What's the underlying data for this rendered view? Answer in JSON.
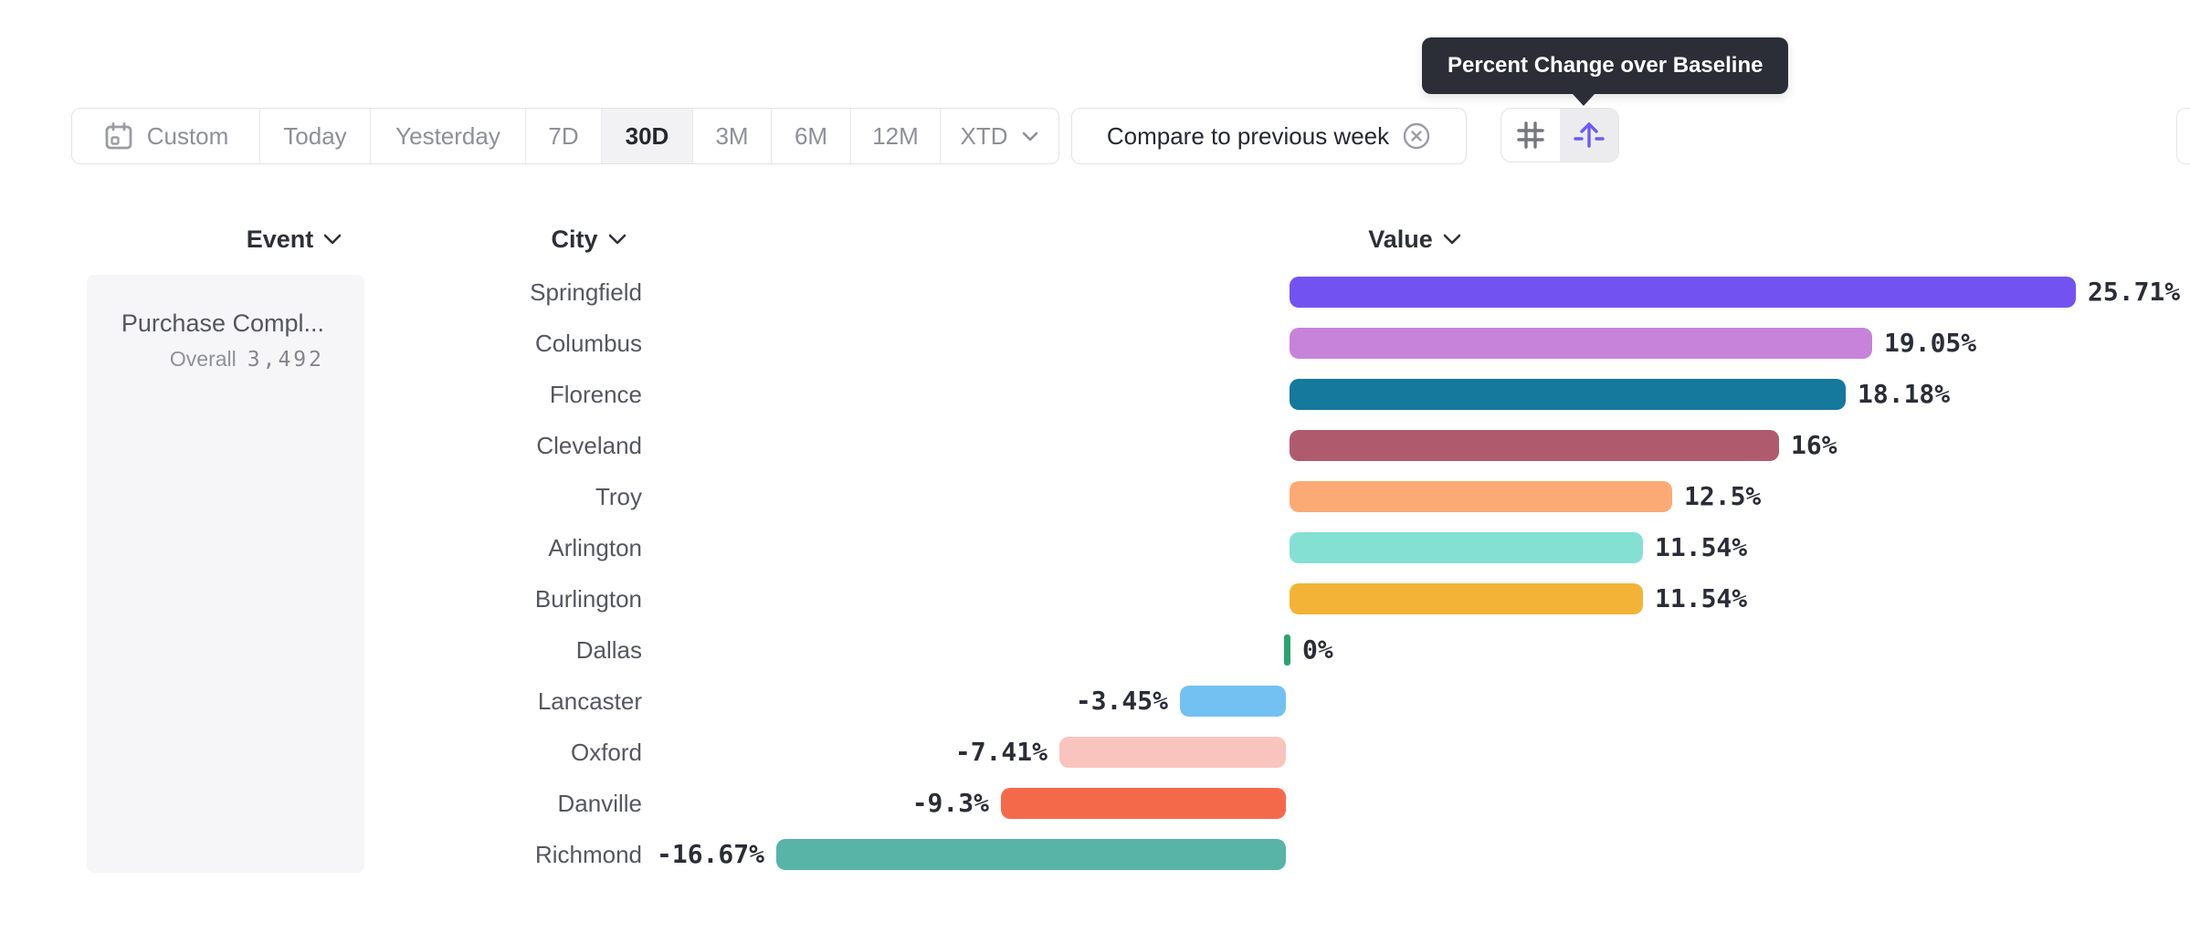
{
  "tooltip": {
    "text": "Percent Change over Baseline"
  },
  "toolbar": {
    "date_ranges": {
      "items": [
        {
          "label": "Custom",
          "icon": "calendar-icon",
          "selected": false
        },
        {
          "label": "Today",
          "selected": false
        },
        {
          "label": "Yesterday",
          "selected": false
        },
        {
          "label": "7D",
          "selected": false
        },
        {
          "label": "30D",
          "selected": true
        },
        {
          "label": "3M",
          "selected": false
        },
        {
          "label": "6M",
          "selected": false
        },
        {
          "label": "12M",
          "selected": false
        },
        {
          "label": "XTD",
          "chevron": true,
          "selected": false
        }
      ],
      "selected": "30D"
    },
    "compare_label": "Compare to previous week",
    "view_toggle": {
      "options": [
        "grid",
        "baseline"
      ],
      "selected": "baseline"
    }
  },
  "columns": {
    "event": "Event",
    "city": "City",
    "value": "Value"
  },
  "event_panel": {
    "name": "Purchase Compl...",
    "overall_label": "Overall",
    "overall_value": "3,492"
  },
  "colors": {
    "accent_purple": "#6c59f6",
    "tooltip_bg": "#2b2d37",
    "zero_green": "#2ba371",
    "value_text": "#2b2d36"
  },
  "chart_data": {
    "type": "bar",
    "orientation": "horizontal",
    "title": "Percent Change over Baseline",
    "categories": [
      "Springfield",
      "Columbus",
      "Florence",
      "Cleveland",
      "Troy",
      "Arlington",
      "Burlington",
      "Dallas",
      "Lancaster",
      "Oxford",
      "Danville",
      "Richmond"
    ],
    "values": [
      25.71,
      19.05,
      18.18,
      16,
      12.5,
      11.54,
      11.54,
      0,
      -3.45,
      -7.41,
      -9.3,
      -16.67
    ],
    "labels": [
      "25.71%",
      "19.05%",
      "18.18%",
      "16%",
      "12.5%",
      "11.54%",
      "11.54%",
      "0%",
      "-3.45%",
      "-7.41%",
      "-9.3%",
      "-16.67%"
    ],
    "colors": [
      "#7253f2",
      "#c783da",
      "#15789d",
      "#b05a6e",
      "#fbaa75",
      "#83e0d3",
      "#f2b337",
      "#2ba371",
      "#72c1f2",
      "#f9c4be",
      "#f5694b",
      "#57b4a7"
    ],
    "xlim": [
      -16.67,
      25.71
    ],
    "grid": false,
    "legend": false,
    "xlabel": "",
    "ylabel": "City"
  }
}
